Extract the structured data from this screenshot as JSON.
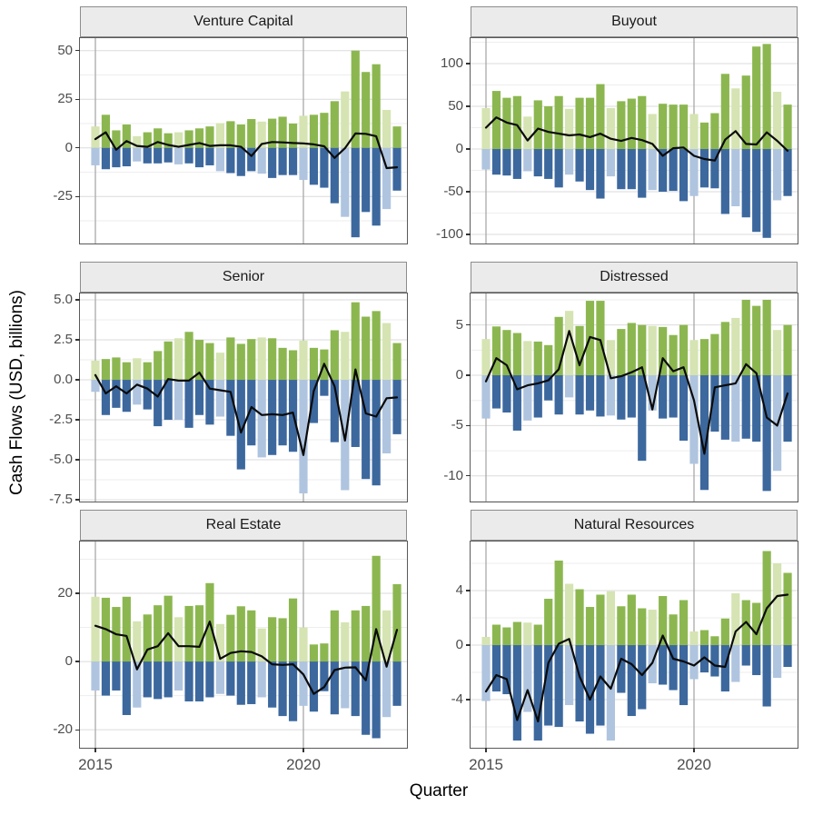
{
  "figure": {
    "y_axis_title": "Cash Flows (USD, billions)",
    "x_axis_title": "Quarter"
  },
  "style": {
    "bar_green": "#8CB750",
    "bar_green_light": "#D5E4B2",
    "bar_blue": "#3C689E",
    "bar_blue_light": "#AFC4DF",
    "net_line": "#0A0A0A",
    "grid_major": "#DBDBDB",
    "grid_minor": "#EEEEEE",
    "year_gridline": "#A9A9A9",
    "panel_border": "#595959",
    "strip_bg": "#EBEBEB",
    "tick_label_color": "#4D4D4D",
    "tick_mark_color": "#333333"
  },
  "chart_data": {
    "type": "bar",
    "subtype": "stacked-diverging-bars-with-net-line",
    "title": "",
    "xlabel": "Quarter",
    "ylabel": "Cash Flows (USD, billions)",
    "grid": true,
    "legend": false,
    "x_tick_labels": [
      "2015",
      "2020"
    ],
    "x_tick_quarter_indices": [
      0,
      20
    ],
    "highlight_every_nth_quarter": 4,
    "highlight_offset": 0,
    "quarters": [
      "2015 Q1",
      "2015 Q2",
      "2015 Q3",
      "2015 Q4",
      "2016 Q1",
      "2016 Q2",
      "2016 Q3",
      "2016 Q4",
      "2017 Q1",
      "2017 Q2",
      "2017 Q3",
      "2017 Q4",
      "2018 Q1",
      "2018 Q2",
      "2018 Q3",
      "2018 Q4",
      "2019 Q1",
      "2019 Q2",
      "2019 Q3",
      "2019 Q4",
      "2020 Q1",
      "2020 Q2",
      "2020 Q3",
      "2020 Q4",
      "2021 Q1",
      "2021 Q2",
      "2021 Q3",
      "2021 Q4",
      "2022 Q1",
      "2022 Q2"
    ],
    "panels": [
      {
        "title": "Venture Capital",
        "ylim": [
          -49.2,
          56.4
        ],
        "tick_values": [
          50,
          25,
          0,
          -25
        ],
        "tick_labels": [
          "50",
          "25",
          "0",
          "-25"
        ],
        "series": {
          "positive_bars": [
            11,
            17,
            9,
            12,
            6,
            8,
            10,
            7.5,
            8,
            9,
            10,
            11,
            12.7,
            13.7,
            12,
            14.8,
            13.5,
            15,
            16,
            12.5,
            16.5,
            17,
            18,
            24,
            29,
            50,
            39,
            43,
            19.5,
            11
          ],
          "negative_bars": [
            -9,
            -11,
            -10,
            -9.5,
            -7,
            -8,
            -8,
            -7.5,
            -8.5,
            -8,
            -10,
            -9,
            -12,
            -13,
            -14.5,
            -12,
            -13.3,
            -15.5,
            -14,
            -14,
            -16.5,
            -19,
            -20.5,
            -28.5,
            -35.5,
            -46,
            -33,
            -40,
            -31.5,
            -22
          ],
          "net_line": [
            4.5,
            8,
            -1,
            3.5,
            1,
            0.5,
            3,
            1.5,
            0.5,
            1.5,
            2.5,
            1,
            1.3,
            1.3,
            0.5,
            -4.2,
            2,
            3,
            2.8,
            2.5,
            2.3,
            1.8,
            0.8,
            -5.2,
            -0.2,
            7.4,
            7.2,
            6,
            -10.4,
            -10
          ]
        }
      },
      {
        "title": "Buyout",
        "ylim": [
          -110.6,
          129.8
        ],
        "tick_values": [
          100,
          50,
          0,
          -50,
          -100
        ],
        "tick_labels": [
          "100",
          "50",
          "0",
          "-50",
          "-100"
        ],
        "series": {
          "positive_bars": [
            48,
            68,
            60,
            62,
            38,
            57,
            50,
            62,
            47,
            60,
            60,
            76,
            48,
            56,
            59,
            62,
            41,
            53,
            52,
            52,
            41,
            31,
            42,
            88,
            71,
            86,
            120,
            123,
            67,
            52
          ],
          "negative_bars": [
            -24,
            -30,
            -31,
            -35,
            -26,
            -32,
            -35,
            -45,
            -30,
            -38,
            -48,
            -58,
            -32,
            -47,
            -47,
            -57,
            -48,
            -50,
            -49,
            -61,
            -55,
            -45,
            -46,
            -76,
            -67,
            -80,
            -97,
            -104,
            -60,
            -55
          ],
          "net_line": [
            25,
            37,
            31,
            28,
            10,
            24,
            20,
            18,
            16,
            17,
            14,
            18,
            12,
            9.5,
            13,
            10.5,
            6,
            -8,
            1,
            1.8,
            -8,
            -11.7,
            -13.5,
            11,
            21,
            6,
            5.3,
            19.5,
            9.6,
            -2
          ]
        }
      },
      {
        "title": "Senior",
        "ylim": [
          -7.61,
          5.4
        ],
        "tick_values": [
          5,
          2.5,
          0,
          -2.5,
          -5,
          -7.5
        ],
        "tick_labels": [
          "5.0",
          "2.5",
          "0.0",
          "-2.5",
          "-5.0",
          "-7.5"
        ],
        "series": {
          "positive_bars": [
            1.2,
            1.3,
            1.4,
            1.1,
            1.35,
            1.1,
            1.8,
            2.4,
            2.6,
            3.0,
            2.5,
            2.3,
            1.7,
            2.65,
            2.25,
            2.55,
            2.65,
            2.6,
            2.0,
            1.85,
            2.45,
            2.0,
            1.9,
            3.1,
            3.0,
            4.85,
            3.95,
            4.3,
            3.55,
            2.3
          ],
          "negative_bars": [
            -0.75,
            -2.2,
            -1.75,
            -2.0,
            -1.55,
            -1.85,
            -2.9,
            -2.5,
            -2.5,
            -3.0,
            -2.2,
            -2.8,
            -2.3,
            -3.5,
            -5.6,
            -4.1,
            -4.85,
            -4.7,
            -4.1,
            -4.5,
            -7.1,
            -2.7,
            -1.0,
            -3.9,
            -6.9,
            -4.2,
            -6.2,
            -6.6,
            -4.6,
            -3.4
          ],
          "net_line": [
            0.3,
            -0.85,
            -0.4,
            -0.85,
            -0.3,
            -0.55,
            -1.05,
            0.05,
            -0.05,
            -0.05,
            0.45,
            -0.55,
            -0.65,
            -0.75,
            -3.3,
            -1.7,
            -2.2,
            -2.15,
            -2.2,
            -2.05,
            -4.7,
            -0.7,
            1.0,
            -0.4,
            -3.8,
            0.65,
            -2.1,
            -2.3,
            -1.15,
            -1.1
          ]
        }
      },
      {
        "title": "Distressed",
        "ylim": [
          -12.55,
          8.13
        ],
        "tick_values": [
          5,
          0,
          -5,
          -10
        ],
        "tick_labels": [
          "5",
          "0",
          "-5",
          "-10"
        ],
        "series": {
          "positive_bars": [
            3.6,
            4.85,
            4.5,
            4.2,
            3.4,
            3.35,
            3.0,
            5.8,
            6.4,
            4.9,
            7.4,
            7.4,
            3.5,
            4.6,
            5.2,
            5.0,
            4.9,
            4.8,
            4.0,
            5.0,
            3.5,
            3.6,
            4.1,
            5.3,
            5.7,
            7.5,
            6.9,
            7.5,
            4.5,
            5.0
          ],
          "negative_bars": [
            -4.3,
            -3.3,
            -3.7,
            -5.5,
            -4.5,
            -4.2,
            -2.5,
            -3.9,
            -2.2,
            -3.9,
            -3.5,
            -4.1,
            -4.0,
            -4.4,
            -4.2,
            -8.5,
            -3.5,
            -4.3,
            -4.2,
            -6.5,
            -8.8,
            -11.4,
            -5.6,
            -6.4,
            -6.6,
            -6.3,
            -6.6,
            -11.5,
            -9.5,
            -6.6
          ],
          "net_line": [
            -0.6,
            1.7,
            1.0,
            -1.4,
            -1.0,
            -0.8,
            -0.5,
            0.6,
            4.4,
            1.0,
            3.8,
            3.5,
            -0.3,
            -0.1,
            0.3,
            0.8,
            -3.4,
            1.7,
            0.4,
            0.8,
            -2.5,
            -7.8,
            -1.2,
            -1.0,
            -0.8,
            1.1,
            0.2,
            -4.2,
            -5.0,
            -1.8
          ]
        }
      },
      {
        "title": "Real Estate",
        "ylim": [
          -25.3,
          35.2
        ],
        "tick_values": [
          20,
          0,
          -20
        ],
        "tick_labels": [
          "20",
          "0",
          "-20"
        ],
        "series": {
          "positive_bars": [
            19,
            18.7,
            16,
            19,
            11.8,
            13.8,
            16.5,
            19.3,
            13,
            16.3,
            16.5,
            23,
            11,
            13.7,
            16.2,
            15,
            9.7,
            13,
            12.7,
            18.5,
            10,
            5,
            5.3,
            15,
            11.5,
            15,
            16.3,
            31,
            15,
            22.7
          ],
          "negative_bars": [
            -8.5,
            -10,
            -8.5,
            -15.7,
            -13.5,
            -10.5,
            -11,
            -10.5,
            -8.5,
            -11.7,
            -11.7,
            -10.5,
            -9.5,
            -10,
            -12.7,
            -12.5,
            -10.5,
            -13.5,
            -16,
            -17.5,
            -13,
            -14.7,
            -8.7,
            -15.5,
            -13.7,
            -16,
            -21.5,
            -22.5,
            -16.3,
            -13
          ],
          "net_line": [
            10.5,
            9.5,
            8,
            7.5,
            -2.3,
            3.5,
            4.5,
            8.3,
            4.5,
            4.5,
            4.3,
            11.7,
            0.8,
            2.5,
            3,
            2.8,
            1.5,
            -0.8,
            -1,
            -0.8,
            -3.8,
            -9.5,
            -7.5,
            -2.5,
            -1.8,
            -1.7,
            -5.5,
            9.5,
            -1.5,
            9.3
          ]
        }
      },
      {
        "title": "Natural Resources",
        "ylim": [
          -7.53,
          7.6
        ],
        "tick_values": [
          4,
          0,
          -4
        ],
        "tick_labels": [
          "4",
          "0",
          "-4"
        ],
        "series": {
          "positive_bars": [
            0.6,
            1.5,
            1.3,
            1.7,
            1.65,
            1.5,
            3.4,
            6.2,
            4.5,
            4.1,
            2.8,
            3.7,
            3.95,
            2.85,
            3.7,
            2.7,
            2.6,
            3.6,
            2.25,
            3.3,
            1.0,
            1.1,
            0.65,
            1.95,
            3.8,
            3.3,
            3.1,
            6.9,
            6.0,
            5.3
          ],
          "negative_bars": [
            -4.1,
            -3.4,
            -3.6,
            -7.0,
            -4.9,
            -7.0,
            -5.9,
            -6.0,
            -4.4,
            -5.6,
            -6.5,
            -5.9,
            -7.0,
            -3.5,
            -5.2,
            -4.7,
            -2.8,
            -2.9,
            -3.3,
            -4.4,
            -2.5,
            -2.0,
            -2.3,
            -3.4,
            -2.7,
            -1.5,
            -2.2,
            -4.5,
            -2.4,
            -1.6
          ],
          "net_line": [
            -3.4,
            -2.2,
            -2.5,
            -5.5,
            -3.3,
            -5.6,
            -1.3,
            0.1,
            0.45,
            -2.3,
            -4.0,
            -2.3,
            -3.2,
            -1.0,
            -1.4,
            -2.2,
            -1.3,
            0.7,
            -1.0,
            -1.2,
            -1.5,
            -0.9,
            -1.5,
            -1.6,
            1.0,
            1.7,
            0.8,
            2.7,
            3.6,
            3.7
          ]
        }
      }
    ]
  }
}
